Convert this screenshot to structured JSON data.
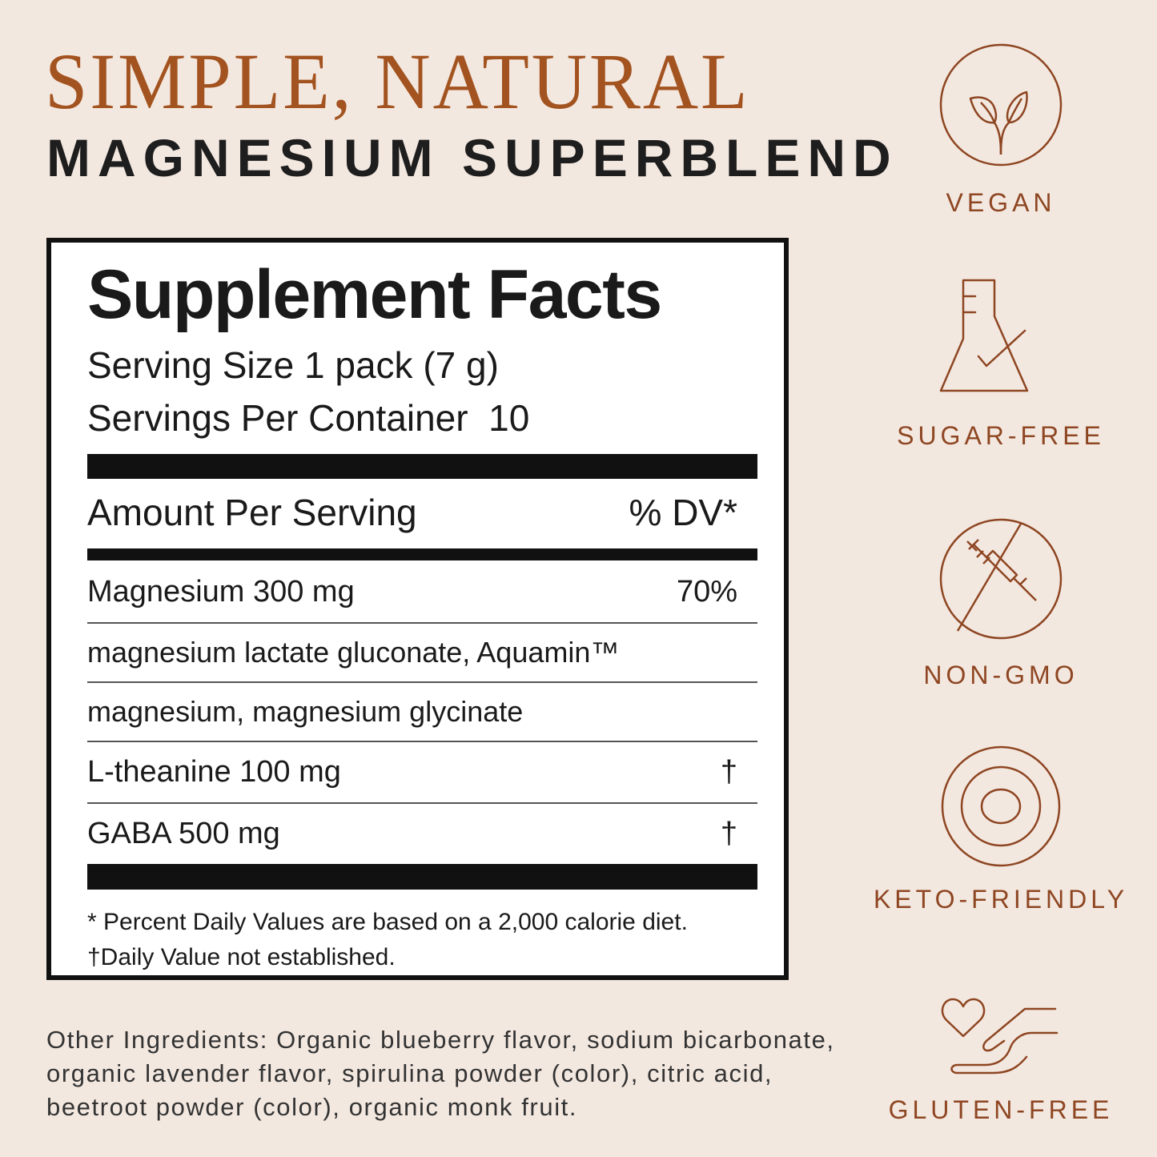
{
  "header": {
    "headline": "SIMPLE, NATURAL",
    "subheadline": "MAGNESIUM SUPERBLEND"
  },
  "colors": {
    "accent": "#a3531f",
    "icon": "#8e4622",
    "background": "#f3e8e0"
  },
  "facts": {
    "title": "Supplement Facts",
    "serving_size": "Serving Size 1 pack (7 g)",
    "servings_per_container": "Servings Per Container  10",
    "amount_header": "Amount Per Serving",
    "dv_header": "% DV*",
    "rows": [
      {
        "name": "Magnesium 300 mg",
        "dv": "70%"
      },
      {
        "name": "magnesium lactate gluconate, Aquamin™",
        "dv": ""
      },
      {
        "name": "magnesium, magnesium glycinate",
        "dv": ""
      },
      {
        "name": "L-theanine 100 mg",
        "dv": "†"
      },
      {
        "name": "GABA 500 mg",
        "dv": "†"
      }
    ],
    "footnote_dv": "* Percent Daily Values are based on a 2,000 calorie diet.",
    "footnote_dagger": "†Daily Value not established."
  },
  "other_ingredients": "Other Ingredients: Organic blueberry flavor, sodium bicarbonate, organic lavender flavor, spirulina powder (color), citric acid, beetroot powder (color), organic monk fruit.",
  "badges": [
    {
      "label": "VEGAN",
      "icon": "sprout-icon"
    },
    {
      "label": "SUGAR-FREE",
      "icon": "flask-check-icon"
    },
    {
      "label": "NON-GMO",
      "icon": "no-syringe-icon"
    },
    {
      "label": "KETO-FRIENDLY",
      "icon": "concentric-circles-icon"
    },
    {
      "label": "GLUTEN-FREE",
      "icon": "heart-hand-icon"
    }
  ]
}
